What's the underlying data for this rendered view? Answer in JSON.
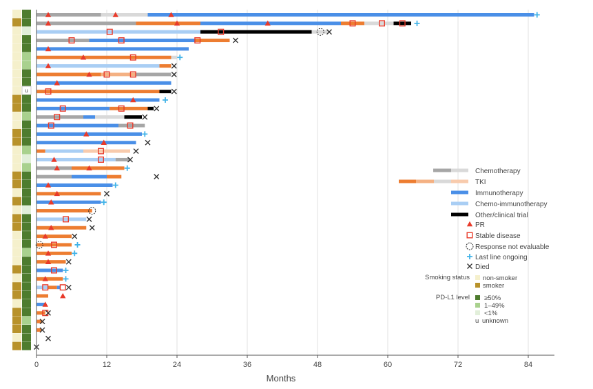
{
  "chart_data": {
    "type": "swimmer",
    "xlabel": "Months",
    "xlim": [
      0,
      88
    ],
    "x_ticks": [
      0,
      12,
      24,
      36,
      48,
      60,
      72,
      84
    ],
    "legend": {
      "position": "right",
      "treatments": [
        {
          "key": "chemo",
          "label": "Chemotherapy"
        },
        {
          "key": "tki",
          "label": "TKI"
        },
        {
          "key": "immuno",
          "label": "Immunotherapy"
        },
        {
          "key": "chemoimmuno",
          "label": "Chemo-immunotherapy"
        },
        {
          "key": "other",
          "label": "Other/clinical trial"
        }
      ],
      "markers": [
        {
          "key": "pr",
          "label": "PR"
        },
        {
          "key": "sd",
          "label": "Stable disease"
        },
        {
          "key": "ne",
          "label": "Response not evaluable"
        },
        {
          "key": "ongoing",
          "label": "Last line ongoing"
        },
        {
          "key": "died",
          "label": "Died"
        }
      ],
      "smoking_title": "Smoking status",
      "smoking": [
        {
          "key": "non",
          "label": "non-smoker"
        },
        {
          "key": "smoker",
          "label": "smoker"
        }
      ],
      "pdl1_title": "PD-L1 level",
      "pdl1": [
        {
          "key": "high",
          "label": "≥50%"
        },
        {
          "key": "mid",
          "label": "1–49%"
        },
        {
          "key": "low",
          "label": "<1%"
        },
        {
          "key": "unk",
          "label": "unknown",
          "code": "u"
        }
      ]
    },
    "colors": {
      "chemo": "#a6a6a6",
      "chemo_light": "#d9d9d9",
      "tki": "#ed7d31",
      "tki_mid": "#f4b183",
      "tki_light": "#f8cbad",
      "immuno": "#4a8fe7",
      "chemoimmuno": "#a9cef4",
      "other": "#000000",
      "pr": "#e83a2a",
      "sd": "#e83a2a",
      "ongoing": "#41b3e8",
      "died": "#333333",
      "smoking_non": "#f5f0cc",
      "smoking_smoker": "#b8922b",
      "pdl1_high": "#4e7c2e",
      "pdl1_mid": "#a9d18e",
      "pdl1_low": "#e2efda",
      "pdl1_unk": "#ffffff"
    },
    "patients": [
      {
        "smoking": "non",
        "pdl1": "high",
        "segments": [
          [
            0,
            11,
            "chemo"
          ],
          [
            11,
            19,
            "chemo_light"
          ],
          [
            19,
            85,
            "immuno"
          ]
        ],
        "pr": [
          2,
          13.5,
          23
        ],
        "sd": [],
        "ne": [],
        "end": "ongoing",
        "end_x": 85.5
      },
      {
        "smoking": "smoker",
        "pdl1": "high",
        "segments": [
          [
            0,
            17,
            "chemo"
          ],
          [
            17,
            28,
            "tki"
          ],
          [
            28,
            40,
            "immuno"
          ],
          [
            40,
            52,
            "immuno"
          ],
          [
            52,
            56,
            "tki"
          ],
          [
            56,
            61,
            "chemo_light"
          ],
          [
            61,
            64,
            "other"
          ]
        ],
        "pr": [
          2,
          24,
          39.5
        ],
        "sd": [
          54,
          59,
          62.5
        ],
        "ne": [],
        "end": "ongoing",
        "end_x": 65
      },
      {
        "smoking": "non",
        "pdl1": "low",
        "segments": [
          [
            0,
            28,
            "chemoimmuno"
          ],
          [
            28,
            47,
            "other"
          ],
          [
            47,
            50,
            "chemo_light"
          ]
        ],
        "pr": [],
        "sd": [
          12.5,
          31.5
        ],
        "ne": [
          48.5
        ],
        "end": "died",
        "end_x": 50
      },
      {
        "smoking": "non",
        "pdl1": "high",
        "segments": [
          [
            0,
            9,
            "chemo"
          ],
          [
            9,
            27,
            "immuno"
          ],
          [
            27,
            33,
            "tki"
          ]
        ],
        "pr": [],
        "sd": [
          6,
          14.5,
          27.5
        ],
        "ne": [],
        "end": "died",
        "end_x": 34
      },
      {
        "smoking": "non",
        "pdl1": "high",
        "segments": [
          [
            0,
            26,
            "immuno"
          ]
        ],
        "pr": [
          2
        ],
        "sd": [],
        "ne": [],
        "end": "",
        "end_x": 26
      },
      {
        "smoking": "non",
        "pdl1": "mid",
        "segments": [
          [
            0,
            23,
            "tki"
          ],
          [
            23,
            24,
            "chemo_light"
          ]
        ],
        "pr": [
          8
        ],
        "sd": [
          16.5
        ],
        "ne": [],
        "end": "ongoing",
        "end_x": 24.5
      },
      {
        "smoking": "non",
        "pdl1": "mid",
        "segments": [
          [
            0,
            21,
            "chemoimmuno"
          ],
          [
            21,
            23,
            "tki"
          ]
        ],
        "pr": [
          2
        ],
        "sd": [],
        "ne": [],
        "end": "died",
        "end_x": 23.5
      },
      {
        "smoking": "non",
        "pdl1": "high",
        "segments": [
          [
            0,
            11,
            "tki"
          ],
          [
            11,
            17,
            "tki_mid"
          ],
          [
            17,
            23,
            "chemo"
          ]
        ],
        "pr": [
          9
        ],
        "sd": [
          12,
          16.5
        ],
        "ne": [],
        "end": "died",
        "end_x": 23.5
      },
      {
        "smoking": "non",
        "pdl1": "high",
        "segments": [
          [
            0,
            23,
            "immuno"
          ]
        ],
        "pr": [
          3.5
        ],
        "sd": [],
        "ne": [],
        "end": "",
        "end_x": 23
      },
      {
        "smoking": "non",
        "pdl1": "unk",
        "segments": [
          [
            0,
            21,
            "tki"
          ],
          [
            21,
            23,
            "other"
          ]
        ],
        "pr": [],
        "sd": [
          2
        ],
        "ne": [],
        "end": "died",
        "end_x": 23.5
      },
      {
        "smoking": "smoker",
        "pdl1": "high",
        "segments": [
          [
            0,
            21,
            "immuno"
          ]
        ],
        "pr": [
          16.5
        ],
        "sd": [],
        "ne": [],
        "end": "ongoing",
        "end_x": 22
      },
      {
        "smoking": "smoker",
        "pdl1": "high",
        "segments": [
          [
            0,
            12.5,
            "immuno"
          ],
          [
            12.5,
            19,
            "tki"
          ],
          [
            19,
            20,
            "other"
          ]
        ],
        "pr": [],
        "sd": [
          4.5,
          14.5
        ],
        "ne": [],
        "end": "died",
        "end_x": 20.5
      },
      {
        "smoking": "non",
        "pdl1": "mid",
        "segments": [
          [
            0,
            8,
            "chemo"
          ],
          [
            8,
            10,
            "immuno"
          ],
          [
            10,
            15,
            "chemo_light"
          ],
          [
            15,
            18,
            "other"
          ]
        ],
        "pr": [],
        "sd": [
          3.5
        ],
        "ne": [],
        "end": "died",
        "end_x": 18.5
      },
      {
        "smoking": "non",
        "pdl1": "high",
        "segments": [
          [
            0,
            14,
            "immuno"
          ],
          [
            14,
            18.5,
            "chemo"
          ]
        ],
        "pr": [],
        "sd": [
          2.5,
          16
        ],
        "ne": [],
        "end": "",
        "end_x": 18.5
      },
      {
        "smoking": "smoker",
        "pdl1": "high",
        "segments": [
          [
            0,
            18,
            "immuno"
          ]
        ],
        "pr": [
          8.5
        ],
        "sd": [],
        "ne": [],
        "end": "ongoing",
        "end_x": 18.5
      },
      {
        "smoking": "smoker",
        "pdl1": "high",
        "segments": [
          [
            0,
            17,
            "immuno"
          ]
        ],
        "pr": [
          11.5
        ],
        "sd": [],
        "ne": [],
        "end": "died",
        "end_x": 19
      },
      {
        "smoking": "non",
        "pdl1": "mid",
        "segments": [
          [
            0,
            1.5,
            "tki"
          ],
          [
            1.5,
            8,
            "chemoimmuno"
          ],
          [
            8,
            16,
            "tki_light"
          ]
        ],
        "pr": [],
        "sd": [
          11
        ],
        "ne": [],
        "end": "died",
        "end_x": 17
      },
      {
        "smoking": "non",
        "pdl1": "low",
        "segments": [
          [
            0,
            13.5,
            "chemoimmuno"
          ],
          [
            13.5,
            16,
            "chemo"
          ]
        ],
        "pr": [
          3
        ],
        "sd": [
          11
        ],
        "ne": [],
        "end": "died",
        "end_x": 16
      },
      {
        "smoking": "non",
        "pdl1": "mid",
        "segments": [
          [
            0,
            6,
            "chemo"
          ],
          [
            6,
            15,
            "tki"
          ]
        ],
        "pr": [
          3.5,
          9
        ],
        "sd": [],
        "ne": [],
        "end": "ongoing",
        "end_x": 15.5
      },
      {
        "smoking": "smoker",
        "pdl1": "high",
        "segments": [
          [
            0,
            6,
            "chemo"
          ],
          [
            6,
            12,
            "immuno"
          ],
          [
            12,
            14.5,
            "tki"
          ]
        ],
        "pr": [],
        "sd": [],
        "ne": [],
        "end": "died",
        "end_x": 20.5
      },
      {
        "smoking": "smoker",
        "pdl1": "high",
        "segments": [
          [
            0,
            13,
            "immuno"
          ]
        ],
        "pr": [
          2
        ],
        "sd": [],
        "ne": [],
        "end": "ongoing",
        "end_x": 13.5
      },
      {
        "smoking": "non",
        "pdl1": "high",
        "segments": [
          [
            0,
            11,
            "tki"
          ]
        ],
        "pr": [
          3.5
        ],
        "sd": [],
        "ne": [],
        "end": "died",
        "end_x": 12
      },
      {
        "smoking": "smoker",
        "pdl1": "high",
        "segments": [
          [
            0,
            11,
            "immuno"
          ]
        ],
        "pr": [
          2.5
        ],
        "sd": [],
        "ne": [],
        "end": "ongoing",
        "end_x": 11.5
      },
      {
        "smoking": "non",
        "pdl1": "low",
        "segments": [
          [
            0,
            9.5,
            "tki"
          ]
        ],
        "pr": [],
        "sd": [],
        "ne": [
          9.5
        ],
        "end": "",
        "end_x": 9.5
      },
      {
        "smoking": "smoker",
        "pdl1": "high",
        "segments": [
          [
            0,
            8.5,
            "chemoimmuno"
          ]
        ],
        "pr": [],
        "sd": [
          5
        ],
        "ne": [],
        "end": "died",
        "end_x": 9
      },
      {
        "smoking": "smoker",
        "pdl1": "high",
        "segments": [
          [
            0,
            8.5,
            "tki"
          ]
        ],
        "pr": [
          2.5
        ],
        "sd": [],
        "ne": [],
        "end": "died",
        "end_x": 9.5
      },
      {
        "smoking": "non",
        "pdl1": "high",
        "segments": [
          [
            0,
            6,
            "tki"
          ]
        ],
        "pr": [
          1.5
        ],
        "sd": [],
        "ne": [],
        "end": "died",
        "end_x": 6.5
      },
      {
        "smoking": "non",
        "pdl1": "high",
        "segments": [
          [
            0,
            6,
            "tki"
          ]
        ],
        "pr": [],
        "sd": [
          3
        ],
        "ne": [
          0.5
        ],
        "end": "ongoing",
        "end_x": 7
      },
      {
        "smoking": "non",
        "pdl1": "mid",
        "segments": [
          [
            0,
            6,
            "tki"
          ]
        ],
        "pr": [
          2
        ],
        "sd": [],
        "ne": [],
        "end": "ongoing",
        "end_x": 6.5
      },
      {
        "smoking": "non",
        "pdl1": "high",
        "segments": [
          [
            0,
            5,
            "tki"
          ]
        ],
        "pr": [
          2
        ],
        "sd": [],
        "ne": [],
        "end": "died",
        "end_x": 5.5
      },
      {
        "smoking": "smoker",
        "pdl1": "high",
        "segments": [
          [
            0,
            4.5,
            "immuno"
          ]
        ],
        "pr": [],
        "sd": [
          3
        ],
        "ne": [],
        "end": "ongoing",
        "end_x": 5
      },
      {
        "smoking": "non",
        "pdl1": "high",
        "segments": [
          [
            0,
            4.5,
            "tki"
          ]
        ],
        "pr": [
          1.5
        ],
        "sd": [],
        "ne": [],
        "end": "ongoing",
        "end_x": 5
      },
      {
        "smoking": "smoker",
        "pdl1": "high",
        "segments": [
          [
            0,
            2,
            "chemoimmuno"
          ],
          [
            2,
            3.5,
            "tki"
          ],
          [
            3.5,
            4,
            "immuno"
          ]
        ],
        "pr": [],
        "sd": [
          1.5,
          4.5
        ],
        "ne": [],
        "end": "died",
        "end_x": 5.5
      },
      {
        "smoking": "smoker",
        "pdl1": "high",
        "segments": [
          [
            0,
            2,
            "tki"
          ]
        ],
        "pr": [
          4.5
        ],
        "sd": [],
        "ne": [],
        "end": "",
        "end_x": 2
      },
      {
        "smoking": "non",
        "pdl1": "high",
        "segments": [
          [
            0,
            1.5,
            "immuno"
          ]
        ],
        "pr": [
          1.5
        ],
        "sd": [],
        "ne": [],
        "end": "",
        "end_x": 1.5
      },
      {
        "smoking": "smoker",
        "pdl1": "high",
        "segments": [
          [
            0,
            1.5,
            "tki"
          ]
        ],
        "pr": [],
        "sd": [
          1.5
        ],
        "ne": [],
        "end": "died",
        "end_x": 2
      },
      {
        "smoking": "smoker",
        "pdl1": "mid",
        "segments": [
          [
            0,
            1,
            "tki"
          ]
        ],
        "pr": [],
        "sd": [],
        "ne": [],
        "end": "died",
        "end_x": 1
      },
      {
        "smoking": "smoker",
        "pdl1": "high",
        "segments": [
          [
            0,
            0.8,
            "tki"
          ]
        ],
        "pr": [],
        "sd": [],
        "ne": [],
        "end": "died",
        "end_x": 1
      },
      {
        "smoking": "non",
        "pdl1": "high",
        "segments": [],
        "pr": [],
        "sd": [],
        "ne": [],
        "end": "died",
        "end_x": 2
      },
      {
        "smoking": "smoker",
        "pdl1": "high",
        "segments": [],
        "pr": [],
        "sd": [],
        "ne": [],
        "end": "died",
        "end_x": 0
      }
    ]
  }
}
